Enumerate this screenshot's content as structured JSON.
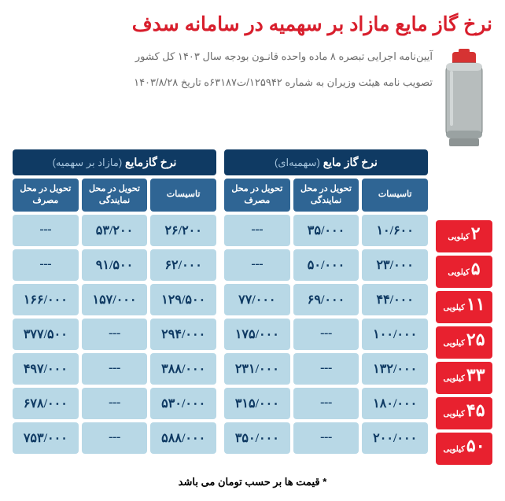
{
  "title": "نرخ گاز مایع مازاد بر سهمیه در سامانه سدف",
  "subtitle1": "آیین‌نامه اجرایی تبصره ۸ ماده واحده قانـون بودجه سال ۱۴۰۳ کل کشور",
  "subtitle2": "تصویب نامه هیئت وزیران به شماره ۱۲۵۹۴۲/ت۶۳۱۸۷ه تاریخ ۱۴۰۳/۸/۲۸",
  "t1": {
    "title": "نرخ گاز مایع",
    "paren": "(سهمیه‌ای)",
    "h": [
      "تاسیسات",
      "تحویل در محل نمایندگی",
      "تحویل در محل مصرف"
    ]
  },
  "t2": {
    "title": "نرخ گازمایع",
    "paren": "(مازاد بر سهمیه)",
    "h": [
      "تاسیسات",
      "تحویل در محل نمایندگی",
      "تحویل در محل مصرف"
    ]
  },
  "sizes": [
    {
      "n": "۲",
      "u": "کیلویی"
    },
    {
      "n": "۵",
      "u": "کیلویی"
    },
    {
      "n": "۱۱",
      "u": "کیلویی"
    },
    {
      "n": "۲۵",
      "u": "کیلویی"
    },
    {
      "n": "۳۳",
      "u": "کیلویی"
    },
    {
      "n": "۴۵",
      "u": "کیلویی"
    },
    {
      "n": "۵۰",
      "u": "کیلویی"
    }
  ],
  "data1": [
    [
      "۱۰/۶۰۰",
      "۳۵/۰۰۰",
      "---"
    ],
    [
      "۲۳/۰۰۰",
      "۵۰/۰۰۰",
      "---"
    ],
    [
      "۴۴/۰۰۰",
      "۶۹/۰۰۰",
      "۷۷/۰۰۰"
    ],
    [
      "۱۰۰/۰۰۰",
      "---",
      "۱۷۵/۰۰۰"
    ],
    [
      "۱۳۲/۰۰۰",
      "---",
      "۲۳۱/۰۰۰"
    ],
    [
      "۱۸۰/۰۰۰",
      "---",
      "۳۱۵/۰۰۰"
    ],
    [
      "۲۰۰/۰۰۰",
      "---",
      "۳۵۰/۰۰۰"
    ]
  ],
  "data2": [
    [
      "۲۶/۲۰۰",
      "۵۳/۲۰۰",
      "---"
    ],
    [
      "۶۲/۰۰۰",
      "۹۱/۵۰۰",
      "---"
    ],
    [
      "۱۲۹/۵۰۰",
      "۱۵۷/۰۰۰",
      "۱۶۶/۰۰۰"
    ],
    [
      "۲۹۴/۰۰۰",
      "---",
      "۳۷۷/۵۰۰"
    ],
    [
      "۳۸۸/۰۰۰",
      "---",
      "۴۹۷/۰۰۰"
    ],
    [
      "۵۳۰/۰۰۰",
      "---",
      "۶۷۸/۰۰۰"
    ],
    [
      "۵۸۸/۰۰۰",
      "---",
      "۷۵۳/۰۰۰"
    ]
  ],
  "footer": "* قیمت ها بر حسب تومان می باشد",
  "colors": {
    "title": "#d81e2c",
    "hdr": "#0f3a63",
    "subh": "#2f6594",
    "cell": "#b8d8e6",
    "size": "#e8212f",
    "cyl_body": "#b7bdbd",
    "cyl_top": "#d63333"
  }
}
